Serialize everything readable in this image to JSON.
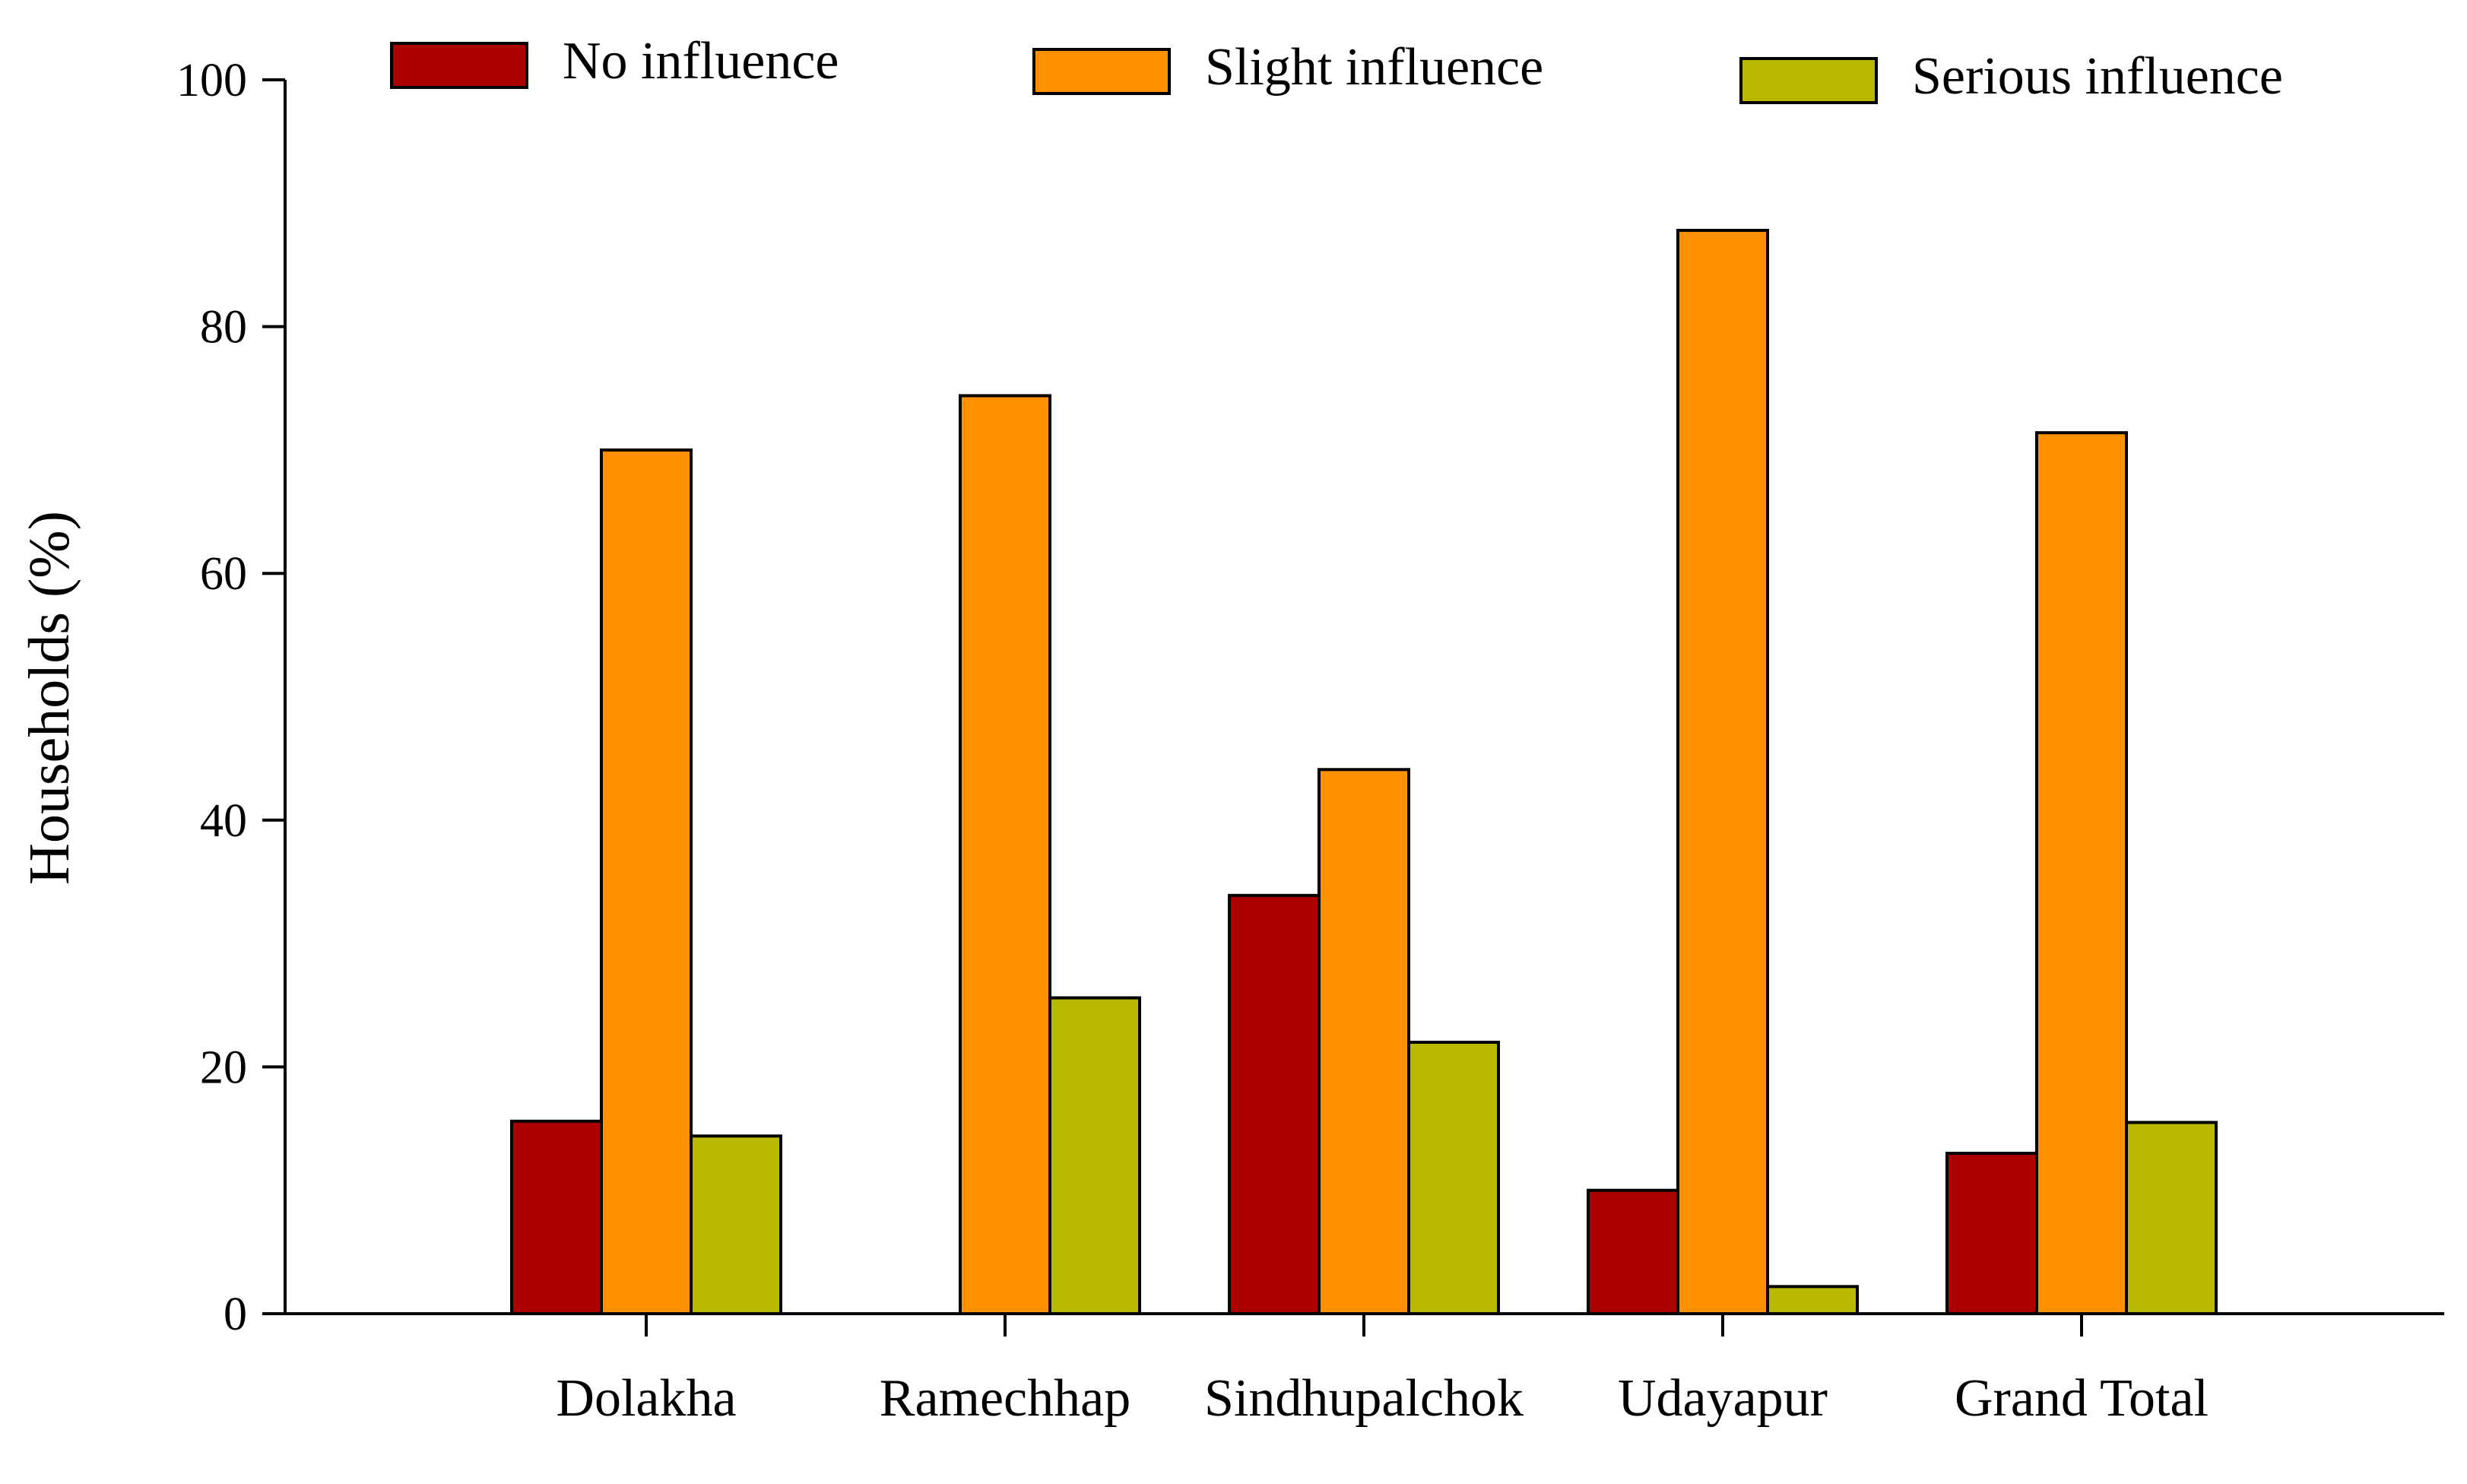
{
  "chart_data": {
    "type": "bar",
    "title": "",
    "xlabel": "",
    "ylabel": "Households (%)",
    "ylim": [
      0,
      100
    ],
    "yticks": [
      0,
      20,
      40,
      60,
      80,
      100
    ],
    "grid": false,
    "legend_position": "top",
    "categories": [
      "Dolakha",
      "Ramechhap",
      "Sindhupalchok",
      "Udayapur",
      "Grand Total"
    ],
    "series": [
      {
        "name": "No influence",
        "color": "#AA0000",
        "values": [
          15.6,
          0,
          33.9,
          10.0,
          13.0
        ]
      },
      {
        "name": "Slight influence",
        "color": "#FF9000",
        "values": [
          70.0,
          74.4,
          44.1,
          87.8,
          71.4
        ]
      },
      {
        "name": "Serious influence",
        "color": "#B8B800",
        "values": [
          14.4,
          25.6,
          22.0,
          2.2,
          15.5
        ]
      }
    ]
  }
}
